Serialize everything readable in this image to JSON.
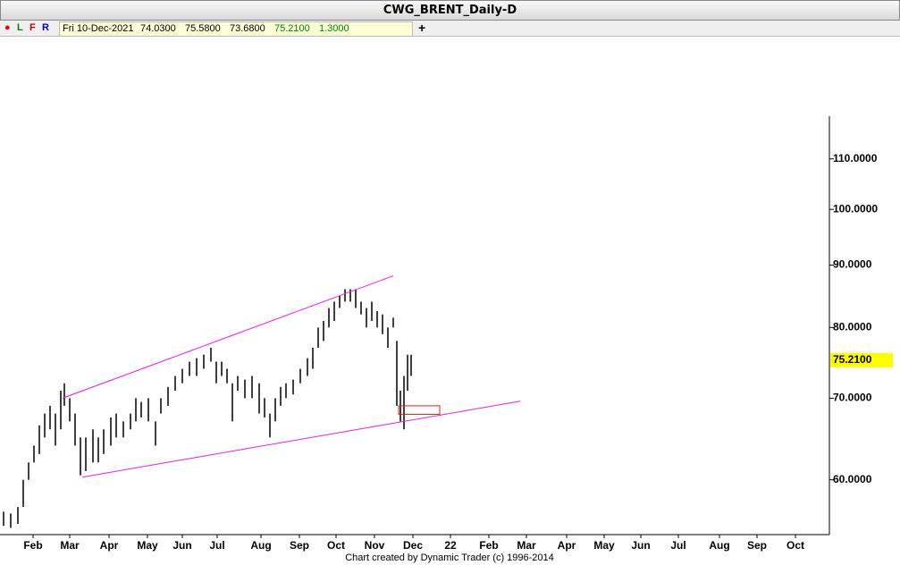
{
  "header": {
    "title": "CWG_BRENT_Daily-D"
  },
  "toolbar": {
    "buttons": [
      "●",
      "L",
      "F",
      "R"
    ],
    "date": "Fri 10-Dec-2021",
    "open": "74.0300",
    "high": "75.5800",
    "low": "73.6800",
    "close": "75.2100",
    "change": "1.3000",
    "add": "+"
  },
  "footer": "Chart created by Dynamic Trader  (c) 1996-2014",
  "chart_data": {
    "type": "ohlc",
    "color": "#000000",
    "log_scale": true,
    "xlim": [
      0,
      464
    ],
    "ylim": [
      54.1,
      138.8
    ],
    "yticks": [
      {
        "value": 60,
        "label": "60.0000"
      },
      {
        "value": 70,
        "label": "70.0000"
      },
      {
        "value": 80,
        "label": "80.0000"
      },
      {
        "value": 90,
        "label": "90.0000"
      },
      {
        "value": 100,
        "label": "100.0000"
      },
      {
        "value": 110,
        "label": "110.0000"
      }
    ],
    "xticks": [
      {
        "value": 18.5,
        "label": "Feb"
      },
      {
        "value": 39,
        "label": "Mar"
      },
      {
        "value": 61,
        "label": "Apr"
      },
      {
        "value": 82.5,
        "label": "May"
      },
      {
        "value": 102,
        "label": "Jun"
      },
      {
        "value": 121.5,
        "label": "Jul"
      },
      {
        "value": 146,
        "label": "Aug"
      },
      {
        "value": 167.5,
        "label": "Sep"
      },
      {
        "value": 188,
        "label": "Oct"
      },
      {
        "value": 209.5,
        "label": "Nov"
      },
      {
        "value": 231,
        "label": "Dec"
      },
      {
        "value": 252,
        "label": "22"
      },
      {
        "value": 273.5,
        "label": "Feb"
      },
      {
        "value": 294.5,
        "label": "Mar"
      },
      {
        "value": 317,
        "label": "Apr"
      },
      {
        "value": 338,
        "label": "May"
      },
      {
        "value": 358.5,
        "label": "Jun"
      },
      {
        "value": 379.5,
        "label": "Jul"
      },
      {
        "value": 402.5,
        "label": "Aug"
      },
      {
        "value": 423.5,
        "label": "Sep"
      },
      {
        "value": 445,
        "label": "Oct"
      }
    ],
    "x": [
      2,
      6,
      10,
      13,
      16,
      19,
      22,
      25,
      28,
      31,
      34,
      36,
      39,
      42,
      45,
      48,
      52,
      55,
      58,
      62,
      65,
      69,
      73,
      76,
      79,
      83,
      87,
      90,
      94,
      98,
      102,
      106,
      110,
      114,
      118,
      121,
      124,
      127,
      130,
      133,
      137,
      141,
      145,
      148,
      151,
      154,
      157,
      160,
      164,
      168,
      172,
      175,
      178,
      181,
      184,
      187,
      190,
      193,
      196,
      199,
      202,
      205,
      208,
      211,
      214,
      217,
      220,
      222,
      224,
      226,
      228,
      230
    ],
    "high": [
      56.5,
      56.3,
      57,
      60,
      62,
      64,
      66.5,
      68,
      69,
      68,
      71,
      72,
      70,
      68,
      65,
      65,
      66,
      65,
      66,
      67.5,
      68,
      67,
      68,
      70,
      69.5,
      70,
      67,
      70,
      71.5,
      73,
      74,
      75,
      75.5,
      76,
      77,
      75,
      75,
      74,
      72,
      73,
      72.5,
      73,
      72,
      70,
      68,
      70,
      71.5,
      72,
      72.5,
      74,
      75.5,
      77,
      80,
      81,
      83,
      84,
      85,
      86,
      86,
      86,
      84,
      83,
      84,
      82.5,
      82,
      80,
      81.5,
      78,
      71,
      73,
      76,
      76
    ],
    "low": [
      55,
      54.8,
      55.2,
      57,
      60,
      62,
      63,
      65,
      66,
      64,
      66,
      69,
      67,
      64,
      60.5,
      61,
      62,
      62,
      63,
      64,
      65,
      65,
      66,
      67,
      67.5,
      67,
      64,
      68,
      69,
      71,
      72,
      73,
      73,
      74,
      75,
      72,
      73,
      72,
      67,
      71,
      70,
      70,
      68,
      67.5,
      65,
      67,
      69,
      70,
      70.5,
      72,
      73,
      74,
      77,
      78,
      80,
      81,
      83,
      84,
      84,
      83,
      82,
      80,
      81,
      80,
      79,
      77,
      80,
      69,
      67,
      66,
      71,
      73
    ],
    "trendlines": [
      {
        "color": "#e020e0",
        "x": [
          35,
          220
        ],
        "y": [
          70,
          88.2
        ]
      },
      {
        "color": "#e020e0",
        "x": [
          46,
          291
        ],
        "y": [
          60.3,
          69.6
        ]
      }
    ],
    "zone": {
      "color": "#e02020",
      "x": [
        223,
        246
      ],
      "y": [
        67.9,
        69.0
      ]
    },
    "last_price": {
      "value": 75.21,
      "label": "75.2100",
      "color": "#ffff00"
    }
  }
}
